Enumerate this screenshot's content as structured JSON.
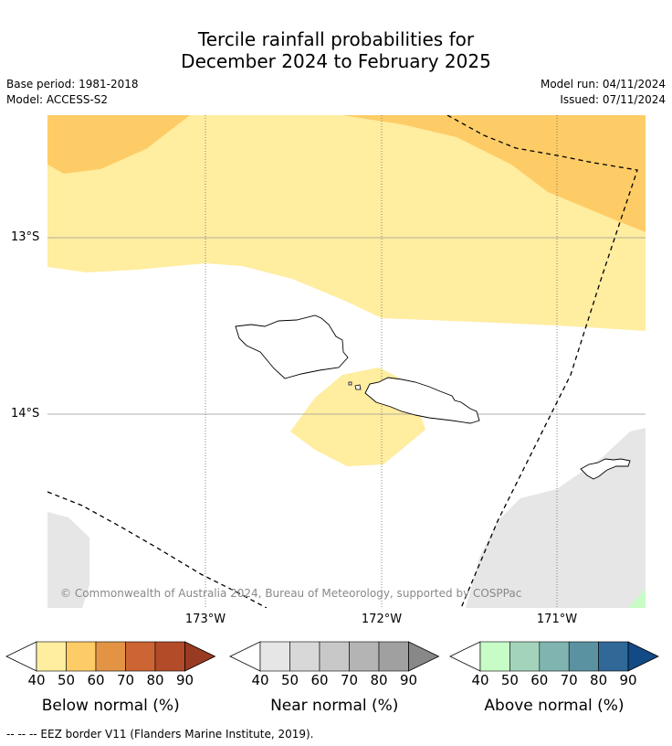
{
  "title_line1": "Tercile rainfall probabilities for",
  "title_line2": "December 2024 to February 2025",
  "base_period": "Base period: 1981-2018",
  "model": "Model: ACCESS-S2",
  "model_run": "Model run: 04/11/2024",
  "issued": "Issued: 07/11/2024",
  "map": {
    "lat_labels": [
      "13°S",
      "14°S"
    ],
    "lon_labels": [
      "173°W",
      "172°W",
      "171°W"
    ],
    "copyright": "© Commonwealth of Australia 2024, Bureau of Meteorology, supported by COSPPac",
    "colors": {
      "below_50_60": "#ffeda0",
      "below_60_70": "#fecc66",
      "near_normal": "#e6e6e6",
      "above_40_50": "#c7fcc7"
    }
  },
  "colorbars": [
    {
      "title": "Below normal (%)",
      "ticks": [
        "40",
        "50",
        "60",
        "70",
        "80",
        "90"
      ],
      "colors": [
        "#ffeda0",
        "#fecc66",
        "#e29444",
        "#cc6433",
        "#b34b28",
        "#993a22"
      ]
    },
    {
      "title": "Near normal (%)",
      "ticks": [
        "40",
        "50",
        "60",
        "70",
        "80",
        "90"
      ],
      "colors": [
        "#e6e6e6",
        "#d8d8d8",
        "#c8c8c8",
        "#b4b4b4",
        "#a0a0a0",
        "#888888"
      ]
    },
    {
      "title": "Above normal (%)",
      "ticks": [
        "40",
        "50",
        "60",
        "70",
        "80",
        "90"
      ],
      "colors": [
        "#c7fcc7",
        "#a3d4bb",
        "#80b4b0",
        "#5b92a2",
        "#306898",
        "#114a84"
      ]
    }
  ],
  "footnote": "--  --  -- EEZ border V11 (Flanders Marine Institute, 2019)."
}
